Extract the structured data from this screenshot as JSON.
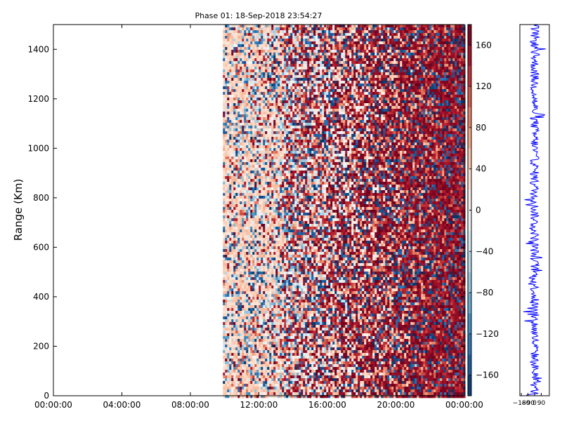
{
  "chart_data": [
    {
      "type": "heatmap",
      "title": "Phase 01: 18-Sep-2018 23:54:27",
      "xlabel": "",
      "ylabel": "Range (Km)",
      "x_tick_labels": [
        "00:00:00",
        "04:00:00",
        "08:00:00",
        "12:00:00",
        "16:00:00",
        "20:00:00",
        "00:00:00"
      ],
      "x_range_hours": [
        0,
        24
      ],
      "data_start_hour": 9.9,
      "y_ticks": [
        0,
        200,
        400,
        600,
        800,
        1000,
        1200,
        1400
      ],
      "ylim": [
        0,
        1500
      ],
      "value_range": [
        -180,
        180
      ],
      "colorbar_ticks": [
        -160,
        -120,
        -80,
        -40,
        0,
        40,
        80,
        120,
        160
      ],
      "colormap": "RdBu_r (blue=negative, red=positive)",
      "description": "Phase values (degrees) vs time and range; no data before ~09:54; noisy random phases, increasingly dominated by red (positive) values toward 20:00–23:30"
    },
    {
      "type": "line",
      "title": "",
      "xlabel": "",
      "ylabel": "",
      "x_tick_labels": [
        "-180",
        "-90",
        "0",
        "90"
      ],
      "xlim": [
        -200,
        200
      ],
      "ylim": [
        0,
        1500
      ],
      "line_color": "#0000ff",
      "description": "Phase profile vs range, fluctuating around ~0"
    }
  ],
  "colors": {
    "axes": "#000000",
    "background": "#ffffff",
    "profile_line": "#0000ff"
  }
}
